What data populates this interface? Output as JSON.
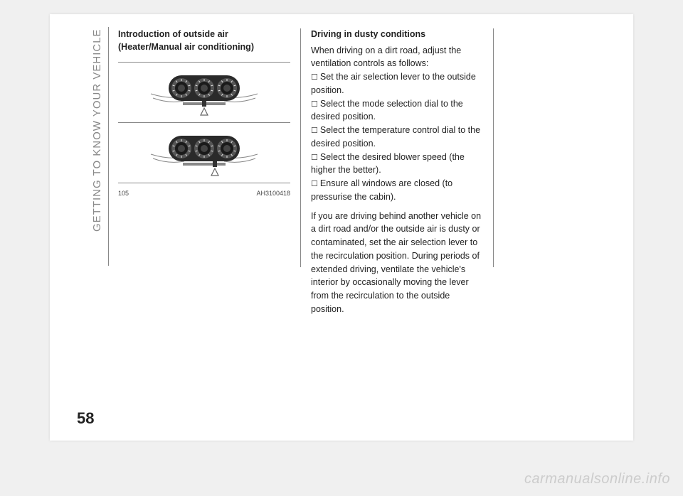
{
  "sidebar_title": "GETTING TO KNOW YOUR VEHICLE",
  "page_number": "58",
  "watermark": "carmanualsonline.info",
  "col1": {
    "heading": "Introduction of outside air (Heater/Manual air conditioning)",
    "fig_num": "105",
    "fig_code": "AH3100418"
  },
  "col2": {
    "heading": "Driving in dusty conditions",
    "intro": "When driving on a dirt road, adjust the ventilation controls as follows:",
    "items": [
      "Set the air selection lever to the outside position.",
      "Select the mode selection dial to the desired position.",
      "Select the temperature control dial to the desired position.",
      "Select the desired blower speed (the higher the better).",
      "Ensure all windows are closed (to pressurise the cabin)."
    ],
    "after": "If you are driving behind another vehicle on a dirt road and/or the outside air is dusty or contaminated, set the air selection lever to the recirculation position. During periods of extended driving, ventilate the vehicle's interior by occasionally moving the lever from the recirculation to the outside position."
  },
  "panel": {
    "bg": "#2a2a2a",
    "dial_rim": "#555555",
    "dial_face": "#1a1a1a",
    "mark": "#e8e8e8",
    "arrow_fill": "#666666"
  }
}
